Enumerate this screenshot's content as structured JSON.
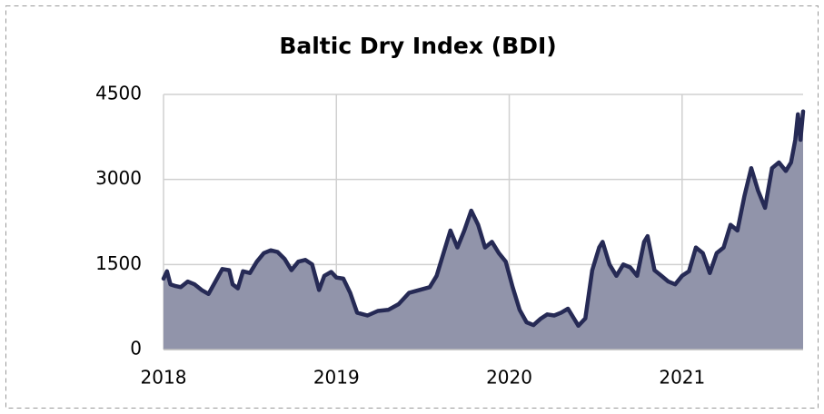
{
  "chart_data": {
    "type": "area",
    "title": "Baltic Dry Index (BDI)",
    "x": [
      2018.0,
      2018.02,
      2018.04,
      2018.07,
      2018.1,
      2018.14,
      2018.18,
      2018.22,
      2018.26,
      2018.3,
      2018.34,
      2018.38,
      2018.4,
      2018.43,
      2018.46,
      2018.5,
      2018.54,
      2018.58,
      2018.62,
      2018.66,
      2018.7,
      2018.74,
      2018.78,
      2018.82,
      2018.86,
      2018.9,
      2018.93,
      2018.97,
      2019.0,
      2019.04,
      2019.08,
      2019.12,
      2019.18,
      2019.24,
      2019.3,
      2019.36,
      2019.42,
      2019.48,
      2019.54,
      2019.58,
      2019.62,
      2019.66,
      2019.7,
      2019.74,
      2019.78,
      2019.82,
      2019.86,
      2019.9,
      2019.94,
      2019.98,
      2020.02,
      2020.06,
      2020.1,
      2020.14,
      2020.18,
      2020.22,
      2020.26,
      2020.3,
      2020.34,
      2020.38,
      2020.4,
      2020.44,
      2020.48,
      2020.52,
      2020.54,
      2020.58,
      2020.62,
      2020.66,
      2020.7,
      2020.74,
      2020.78,
      2020.8,
      2020.84,
      2020.88,
      2020.92,
      2020.96,
      2021.0,
      2021.04,
      2021.08,
      2021.12,
      2021.16,
      2021.2,
      2021.24,
      2021.28,
      2021.32,
      2021.36,
      2021.4,
      2021.44,
      2021.48,
      2021.52,
      2021.56,
      2021.6,
      2021.63,
      2021.655,
      2021.67,
      2021.685,
      2021.7
    ],
    "values": [
      1250,
      1380,
      1150,
      1120,
      1100,
      1200,
      1150,
      1050,
      980,
      1200,
      1420,
      1400,
      1150,
      1080,
      1380,
      1350,
      1550,
      1700,
      1750,
      1720,
      1600,
      1400,
      1550,
      1580,
      1500,
      1050,
      1300,
      1370,
      1270,
      1250,
      1000,
      650,
      600,
      680,
      700,
      800,
      1000,
      1050,
      1100,
      1300,
      1700,
      2100,
      1800,
      2100,
      2450,
      2200,
      1800,
      1900,
      1700,
      1550,
      1100,
      700,
      480,
      430,
      540,
      620,
      600,
      650,
      720,
      520,
      420,
      550,
      1400,
      1800,
      1900,
      1500,
      1300,
      1500,
      1450,
      1300,
      1900,
      2000,
      1400,
      1300,
      1200,
      1150,
      1300,
      1380,
      1800,
      1700,
      1350,
      1700,
      1800,
      2200,
      2100,
      2700,
      3200,
      2800,
      2500,
      3200,
      3300,
      3150,
      3300,
      3700,
      4150,
      3700,
      4200
    ],
    "line_color": "#262a55",
    "fill_color": "#9194aa",
    "xlim": [
      2018,
      2021.7
    ],
    "xticks": [
      2018,
      2019,
      2020,
      2021
    ],
    "ylim": [
      0,
      4500
    ],
    "yticks": [
      0,
      1500,
      3000,
      4500
    ],
    "grid": true
  }
}
